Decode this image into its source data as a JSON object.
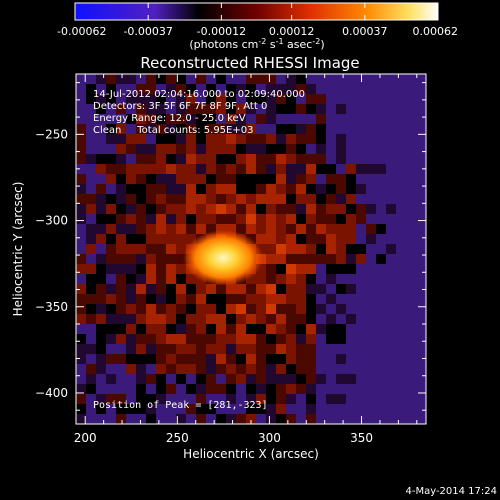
{
  "chart_data": {
    "type": "heatmap",
    "title": "Reconstructed RHESSI Image",
    "xlabel": "Heliocentric X (arcsec)",
    "ylabel": "Heliocentric Y (arcsec)",
    "xlim": [
      195,
      385
    ],
    "ylim": [
      -418,
      -215
    ],
    "x_ticks": [
      200,
      250,
      300,
      350
    ],
    "y_ticks": [
      -250,
      -300,
      -350,
      -400
    ],
    "colorbar": {
      "min": -0.00062,
      "max": 0.00062,
      "tick_labels": [
        "-0.00062",
        "-0.00037",
        "-0.00012",
        "0.00012",
        "0.00037",
        "0.00062"
      ],
      "tick_values": [
        -0.00062,
        -0.00037,
        -0.00012,
        0.00012,
        0.00037,
        0.00062
      ]
    },
    "annotations": [
      "14-Jul-2012 02:04:16.000 to 02:09:40.000",
      "Detectors: 3F 5F 6F 7F 8F 9F, Att 0",
      "Energy Range: 12.0 - 25.0 keV",
      "Clean     Total counts: 5.95E+03"
    ],
    "peak_label": "Position of Peak = [281,-323]",
    "peak": [
      281,
      -323
    ],
    "timestamp": "4-May-2014 17:24"
  },
  "colorbar_units": {
    "prefix": "(photons cm",
    "exp1": "-2",
    "mid1": " s",
    "exp2": "-1",
    "mid2": " asec",
    "exp3": "-2",
    "suffix": ")"
  }
}
